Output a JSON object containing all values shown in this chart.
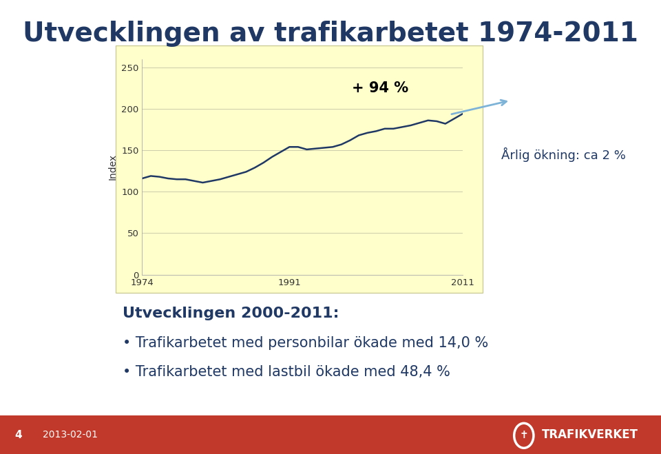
{
  "title": "Utvecklingen av trafikarbetet 1974-2011",
  "title_color": "#1F3864",
  "title_fontsize": 28,
  "ylabel": "Index",
  "ylabel_fontsize": 10,
  "chart_bg_color": "#FFFFCC",
  "page_bg_color": "#FFFFFF",
  "line_color": "#1F3864",
  "line_width": 1.8,
  "annotation_text": "+ 94 %",
  "annotation_fontsize": 15,
  "annotation_color": "#000000",
  "arrow_annotation": "Årlig ökning: ca 2 %",
  "arrow_annotation_fontsize": 13,
  "arrow_color": "#7EB3D8",
  "ylim": [
    0,
    260
  ],
  "yticks": [
    0,
    50,
    100,
    150,
    200,
    250
  ],
  "xticks": [
    1974,
    1991,
    2011
  ],
  "grid_color": "#CCCCAA",
  "footer_text_num": "4",
  "footer_text_date": "2013-02-01",
  "footer_bg": "#C0392B",
  "subtitle_bold": "Utvecklingen 2000-2011",
  "bullet1": "Trafikarbetet med personbilar ökade med 14,0 %",
  "bullet2": "Trafikarbetet med lastbil ökade med 48,4 %",
  "subtitle_fontsize": 16,
  "bullet_fontsize": 15,
  "text_dark_blue": "#1F3864",
  "years": [
    1974,
    1975,
    1976,
    1977,
    1978,
    1979,
    1980,
    1981,
    1982,
    1983,
    1984,
    1985,
    1986,
    1987,
    1988,
    1989,
    1990,
    1991,
    1992,
    1993,
    1994,
    1995,
    1996,
    1997,
    1998,
    1999,
    2000,
    2001,
    2002,
    2003,
    2004,
    2005,
    2006,
    2007,
    2008,
    2009,
    2010,
    2011
  ],
  "values": [
    116,
    119,
    118,
    116,
    115,
    115,
    113,
    111,
    113,
    115,
    118,
    121,
    124,
    129,
    135,
    142,
    148,
    154,
    154,
    151,
    152,
    153,
    154,
    157,
    162,
    168,
    171,
    173,
    176,
    176,
    178,
    180,
    183,
    186,
    185,
    182,
    188,
    194
  ]
}
